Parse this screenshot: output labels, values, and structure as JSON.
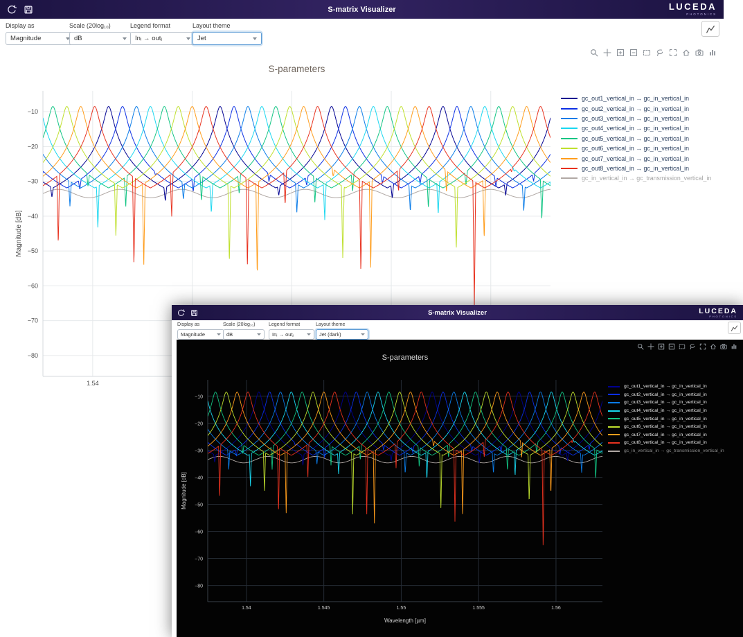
{
  "header": {
    "title": "S-matrix Visualizer",
    "logo_text": "LUCEDA",
    "logo_subtext": "PHOTONICS"
  },
  "controls": {
    "display_as": {
      "label": "Display as",
      "value": "Magnitude"
    },
    "scale": {
      "label": "Scale (20log₁₀)",
      "value": "dB"
    },
    "legend_format": {
      "label": "Legend format",
      "value": "Inᵢ → outⱼ"
    },
    "layout_theme": {
      "label": "Layout theme"
    }
  },
  "windows": {
    "light": {
      "theme_value": "Jet"
    },
    "dark": {
      "theme_value": "Jet (dark)"
    }
  },
  "modebar": [
    "zoom",
    "pan",
    "zoom-in",
    "zoom-out",
    "box-select",
    "lasso",
    "autoscale",
    "reset-axes",
    "camera",
    "plotly-logo"
  ],
  "chart_data": {
    "type": "line",
    "title": "S-parameters",
    "xlabel": "Wavelength [µm]",
    "ylabel": "Magnitude [dB]",
    "xlim": [
      1.5375,
      1.563
    ],
    "ylim": [
      -86,
      -4
    ],
    "xticks": [
      1.54,
      1.545,
      1.55,
      1.555,
      1.56
    ],
    "yticks": [
      -10,
      -20,
      -30,
      -40,
      -50,
      -60,
      -70,
      -80
    ],
    "grid": true,
    "legend_position": "right",
    "model": {
      "fsr_um": 0.0056,
      "channel_spacing_um": 0.0007,
      "first_center_um": 1.5408,
      "peak_db": -8.5,
      "lorentz_width_um": 0.00019,
      "notch_period_um": 0.0019,
      "notch_width_um": 7e-05
    },
    "series": [
      {
        "label": "gc_out1_vertical_in → gc_in_vertical_in",
        "color": "#000091",
        "channel": 0,
        "notch_depth_db": 4
      },
      {
        "label": "gc_out2_vertical_in → gc_in_vertical_in",
        "color": "#0b2fe4",
        "channel": 1,
        "notch_depth_db": 6
      },
      {
        "label": "gc_out3_vertical_in → gc_in_vertical_in",
        "color": "#0a7ce8",
        "channel": 2,
        "notch_depth_db": 9
      },
      {
        "label": "gc_out4_vertical_in → gc_in_vertical_in",
        "color": "#19d7f0",
        "channel": 3,
        "notch_depth_db": 12
      },
      {
        "label": "gc_out5_vertical_in → gc_in_vertical_in",
        "color": "#12c584",
        "channel": 4,
        "notch_depth_db": 16
      },
      {
        "label": "gc_out6_vertical_in → gc_in_vertical_in",
        "color": "#bfe02e",
        "channel": 5,
        "notch_depth_db": 24
      },
      {
        "label": "gc_out7_vertical_in → gc_in_vertical_in",
        "color": "#ff9d1c",
        "channel": 6,
        "notch_depth_db": 35
      },
      {
        "label": "gc_out8_vertical_in → gc_in_vertical_in",
        "color": "#e8321f",
        "channel": 7,
        "notch_depth_db": 46
      },
      {
        "label": "gc_in_vertical_in → gc_transmission_vertical_in",
        "color": "#b0a8a4",
        "baseline_db": -33.5,
        "ripple_db": 1.2,
        "ripple_period_um": 0.0031,
        "muted": true
      }
    ],
    "themes": {
      "light": {
        "paper": "#ffffff",
        "plot": "#ffffff",
        "grid": "#e6e9eb",
        "axis": "#d5dade",
        "text": "#4c4c4c",
        "title": "#6f655c",
        "legend_text": "#2a3f5f",
        "legend_muted": "#a6a6a6"
      },
      "dark": {
        "paper": "#030303",
        "plot": "#030303",
        "grid": "#262d36",
        "axis": "#3a4149",
        "text": "#cfcfcf",
        "title": "#dcdcdc",
        "legend_text": "#e8e8e8",
        "legend_muted": "#8f8f8f"
      }
    }
  }
}
